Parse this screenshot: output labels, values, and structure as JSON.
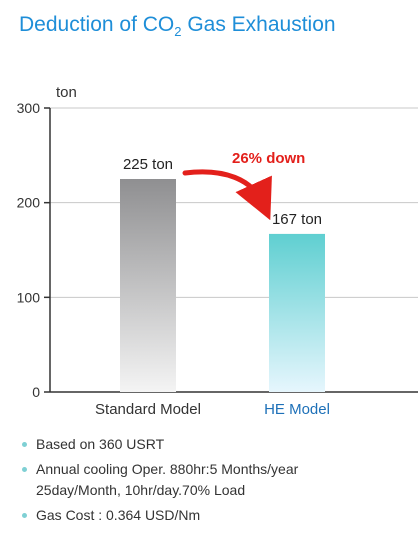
{
  "title": {
    "prefix": "Deduction of CO",
    "subscript": "2",
    "suffix": " Gas Exhaustion"
  },
  "chart_data": {
    "type": "bar",
    "ylabel": "ton",
    "ylim": [
      0,
      300
    ],
    "yticks": [
      0,
      100,
      200,
      300
    ],
    "grid": true,
    "categories": [
      "Standard Model",
      "HE Model"
    ],
    "values": [
      225,
      167
    ],
    "value_labels": [
      "225 ton",
      "167 ton"
    ],
    "annotation": "26% down",
    "colors": {
      "standard_top": "#8f8f91",
      "standard_bottom": "#f4f4f4",
      "he_top": "#5fcfd1",
      "he_bottom": "#e6f6fd",
      "arrow": "#e3201b",
      "he_label": "#1d70b8",
      "axis": "#333333",
      "grid": "#c8c8c8"
    }
  },
  "notes": [
    {
      "lines": [
        "Based on 360 USRT"
      ]
    },
    {
      "lines": [
        "Annual cooling Oper. 880hr:5 Months/year",
        "25day/Month, 10hr/day.70% Load"
      ]
    },
    {
      "lines": [
        "Gas Cost : 0.364 USD/Nm"
      ]
    }
  ]
}
